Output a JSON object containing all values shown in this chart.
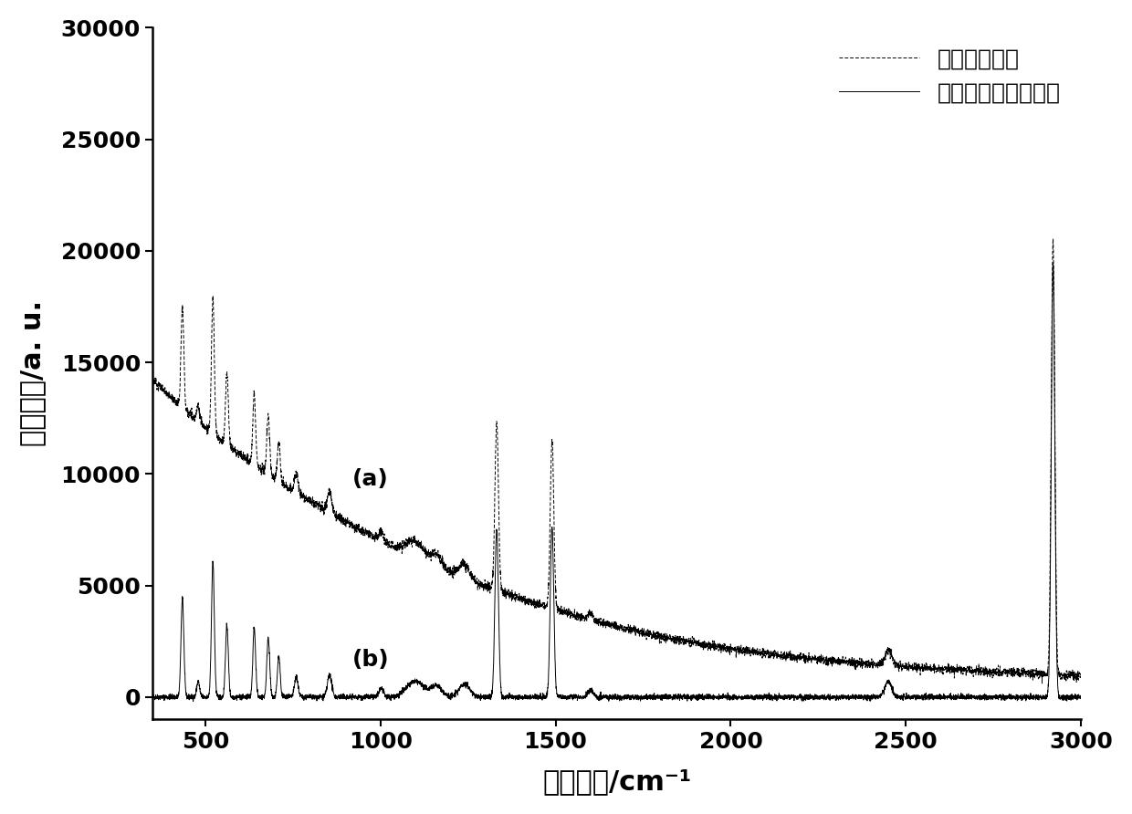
{
  "x_min": 350,
  "x_max": 3000,
  "y_min": -1000,
  "y_max": 30000,
  "xlabel": "拉曼位移/cm⁻¹",
  "ylabel": "拉曼强度/a. u.",
  "legend_dashed": "原始拉曼光谱",
  "legend_solid": "基线校正后拉曼光谱",
  "label_a": "(a)",
  "label_b": "(b)",
  "yticks": [
    0,
    5000,
    10000,
    15000,
    20000,
    25000,
    30000
  ],
  "xticks": [
    500,
    1000,
    1500,
    2000,
    2500,
    3000
  ],
  "background_color": "#ffffff",
  "dpi": 100,
  "fig_width": 12.4,
  "fig_height": 8.92,
  "font_size_label": 22,
  "font_size_tick": 18,
  "font_size_legend": 18,
  "font_size_annotation": 18
}
